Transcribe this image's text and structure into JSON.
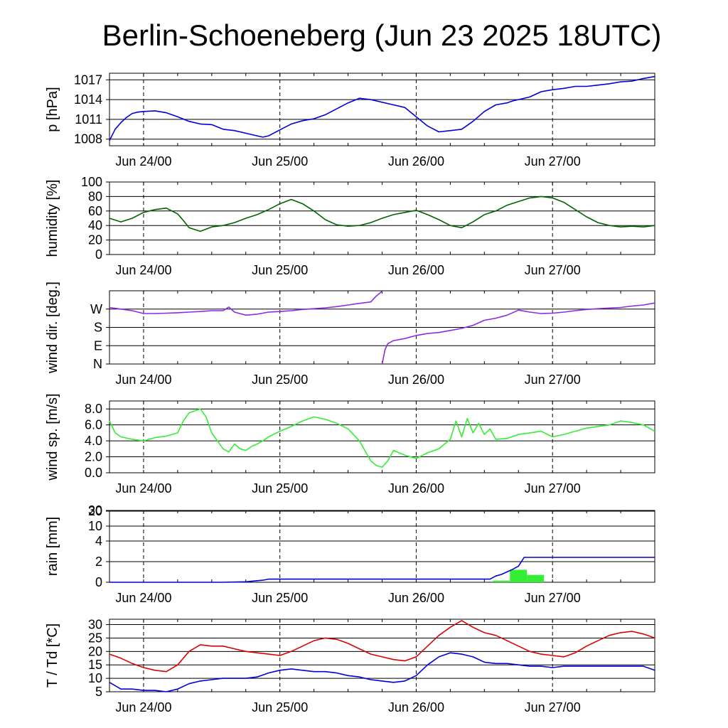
{
  "title": "Berlin-Schoeneberg (Jun 23 2025 18UTC)",
  "x_tick_labels": [
    "Jun 24/00",
    "Jun 25/00",
    "Jun 26/00",
    "Jun 27/00"
  ],
  "chart_data": [
    {
      "id": "pressure",
      "type": "line",
      "ylabel": "p [hPa]",
      "ylim": [
        1007,
        1018
      ],
      "yticks": [
        1008,
        1011,
        1014,
        1017
      ],
      "yticklabels": [
        "1008",
        "1011",
        "1014",
        "1017"
      ],
      "x_unit": "hours since Jun 23 18UTC",
      "xlim": [
        0,
        96
      ],
      "series": [
        {
          "color": "#0000dd",
          "x": [
            0,
            1,
            2,
            3,
            4,
            5,
            6,
            8,
            10,
            12,
            14,
            16,
            18,
            20,
            22,
            24,
            26,
            27,
            28,
            30,
            32,
            34,
            36,
            38,
            40,
            42,
            44,
            46,
            48,
            50,
            52,
            54,
            56,
            58,
            60,
            62,
            64,
            66,
            68,
            70,
            71,
            72,
            74,
            76,
            78,
            80,
            82,
            84,
            86,
            88,
            90,
            92,
            94,
            96
          ],
          "y": [
            1007.8,
            1009.5,
            1010.5,
            1011.3,
            1011.9,
            1012.1,
            1012.2,
            1012.3,
            1012.0,
            1011.4,
            1010.7,
            1010.3,
            1010.2,
            1009.5,
            1009.3,
            1008.9,
            1008.5,
            1008.3,
            1008.5,
            1009.4,
            1010.3,
            1010.8,
            1011.1,
            1011.7,
            1012.6,
            1013.5,
            1014.2,
            1014.0,
            1013.6,
            1013.2,
            1012.8,
            1011.4,
            1010.0,
            1009.1,
            1009.3,
            1009.5,
            1010.7,
            1012.2,
            1013.2,
            1013.5,
            1013.8,
            1014.0,
            1014.4,
            1015.2,
            1015.5,
            1015.7,
            1016.0,
            1016.0,
            1016.2,
            1016.4,
            1016.7,
            1016.8,
            1017.2,
            1017.5
          ]
        }
      ]
    },
    {
      "id": "humidity",
      "type": "line",
      "ylabel": "humidity [%]",
      "ylim": [
        0,
        100
      ],
      "yticks": [
        0,
        20,
        40,
        60,
        80,
        100
      ],
      "yticklabels": [
        "0",
        "20",
        "40",
        "60",
        "80",
        "100"
      ],
      "xlim": [
        0,
        96
      ],
      "series": [
        {
          "color": "#006400",
          "x": [
            0,
            2,
            4,
            6,
            8,
            10,
            12,
            13,
            14,
            16,
            18,
            20,
            22,
            24,
            26,
            28,
            30,
            32,
            34,
            36,
            38,
            40,
            42,
            44,
            46,
            48,
            50,
            52,
            54,
            56,
            58,
            60,
            62,
            64,
            66,
            68,
            70,
            72,
            74,
            76,
            78,
            80,
            82,
            84,
            86,
            88,
            90,
            92,
            94,
            96
          ],
          "y": [
            50,
            45,
            50,
            58,
            62,
            64,
            56,
            47,
            37,
            32,
            38,
            40,
            44,
            50,
            55,
            62,
            70,
            76,
            70,
            60,
            48,
            41,
            39,
            40,
            44,
            50,
            55,
            58,
            61,
            55,
            48,
            40,
            37,
            45,
            55,
            60,
            68,
            73,
            78,
            80,
            78,
            72,
            62,
            52,
            44,
            40,
            38,
            39,
            38,
            40
          ]
        }
      ]
    },
    {
      "id": "wind-direction",
      "type": "line",
      "ylabel": "wind dir. [deg.]",
      "ylim": [
        0,
        360
      ],
      "yticks": [
        0,
        90,
        180,
        270
      ],
      "yticklabels": [
        "N",
        "E",
        "S",
        "W"
      ],
      "xlim": [
        0,
        96
      ],
      "series": [
        {
          "color": "#8a2be2",
          "segments": [
            {
              "x": [
                0,
                2,
                4,
                6,
                8,
                10,
                12,
                14,
                16,
                18,
                20,
                21,
                22,
                24,
                26,
                28,
                30,
                32,
                34,
                36,
                38,
                40,
                42,
                44,
                46,
                47,
                48
              ],
              "y": [
                278,
                270,
                262,
                248,
                248,
                250,
                252,
                255,
                258,
                262,
                262,
                280,
                255,
                240,
                245,
                255,
                258,
                262,
                268,
                272,
                276,
                282,
                290,
                298,
                305,
                335,
                358
              ]
            },
            {
              "x": [
                48,
                48.5,
                49,
                50,
                52,
                54,
                56,
                58,
                60,
                62,
                64,
                66,
                68,
                70,
                72,
                74,
                76,
                78,
                80,
                82,
                84,
                86,
                88,
                90,
                92,
                94,
                96
              ],
              "y": [
                0,
                70,
                100,
                115,
                125,
                140,
                150,
                155,
                165,
                175,
                190,
                215,
                225,
                240,
                265,
                255,
                248,
                250,
                255,
                262,
                268,
                272,
                275,
                278,
                285,
                290,
                300
              ]
            }
          ]
        }
      ]
    },
    {
      "id": "wind-speed",
      "type": "line",
      "ylabel": "wind sp. [m/s]",
      "ylim": [
        0,
        9
      ],
      "yticks": [
        0,
        2,
        4,
        6,
        8
      ],
      "yticklabels": [
        "0.0",
        "2.0",
        "4.0",
        "6.0",
        "8.0"
      ],
      "xlim": [
        0,
        96
      ],
      "series": [
        {
          "color": "#33ee33",
          "x": [
            0,
            1,
            2,
            4,
            6,
            8,
            10,
            12,
            13,
            14,
            16,
            17,
            18,
            19,
            20,
            21,
            22,
            23,
            24,
            25,
            26,
            27,
            28,
            30,
            32,
            34,
            36,
            38,
            40,
            42,
            44,
            46,
            47,
            48,
            49,
            50,
            52,
            54,
            56,
            58,
            60,
            61,
            62,
            63,
            64,
            65,
            66,
            67,
            68,
            70,
            72,
            74,
            76,
            78,
            80,
            82,
            84,
            86,
            88,
            90,
            92,
            94,
            96
          ],
          "y": [
            6.5,
            5.0,
            4.5,
            4.2,
            4.0,
            4.4,
            4.6,
            5.0,
            6.5,
            7.5,
            8.0,
            7.0,
            5.0,
            4.0,
            3.0,
            2.6,
            3.6,
            3.0,
            2.8,
            3.3,
            3.6,
            4.0,
            4.5,
            5.2,
            5.8,
            6.5,
            7.0,
            6.7,
            6.2,
            5.5,
            4.0,
            1.5,
            0.9,
            0.7,
            1.5,
            2.8,
            2.2,
            1.8,
            2.5,
            3.0,
            4.2,
            6.5,
            4.5,
            6.8,
            5.0,
            6.2,
            4.8,
            5.5,
            4.2,
            4.3,
            4.8,
            5.0,
            5.2,
            4.5,
            4.8,
            5.2,
            5.6,
            5.8,
            6.0,
            6.5,
            6.3,
            6.0,
            5.2
          ]
        }
      ]
    },
    {
      "id": "rain",
      "type": "bar",
      "ylabel": "rain [mm]",
      "scale": "piecewise",
      "ylim": [
        0,
        30
      ],
      "yticks": [
        0,
        2,
        4,
        10,
        20,
        30
      ],
      "yticklabels": [
        "0",
        "2",
        "4",
        "10",
        "20",
        "30"
      ],
      "xlim": [
        0,
        96
      ],
      "bars": [
        {
          "x0": 67.5,
          "x1": 70.5,
          "value": 0.15
        },
        {
          "x0": 70.5,
          "x1": 73.5,
          "value": 1.2
        },
        {
          "x0": 73.5,
          "x1": 76.5,
          "value": 0.7
        }
      ],
      "bar_color": "#33ee33",
      "cumulative": {
        "color": "#0000dd",
        "x": [
          0,
          20,
          24,
          27,
          28,
          48,
          67,
          68,
          69,
          70,
          71,
          72,
          73,
          96
        ],
        "y": [
          0,
          0,
          0.05,
          0.2,
          0.3,
          0.3,
          0.3,
          0.6,
          0.75,
          1.0,
          1.25,
          1.55,
          2.4,
          2.4
        ]
      }
    },
    {
      "id": "temperature",
      "type": "line",
      "ylabel": "T / Td [*C]",
      "ylim": [
        5,
        32
      ],
      "yticks": [
        5,
        10,
        15,
        20,
        25,
        30
      ],
      "yticklabels": [
        "5",
        "10",
        "15",
        "20",
        "25",
        "30"
      ],
      "xlim": [
        0,
        96
      ],
      "series": [
        {
          "name": "T",
          "color": "#dd0000",
          "x": [
            0,
            2,
            4,
            6,
            8,
            10,
            12,
            14,
            16,
            18,
            20,
            22,
            24,
            26,
            28,
            30,
            32,
            34,
            36,
            38,
            40,
            42,
            44,
            46,
            48,
            50,
            52,
            54,
            56,
            58,
            60,
            62,
            64,
            66,
            68,
            70,
            72,
            74,
            76,
            78,
            80,
            82,
            84,
            86,
            88,
            90,
            92,
            94,
            96
          ],
          "y": [
            19,
            17.5,
            15.5,
            14,
            13,
            12.5,
            15,
            20,
            22.5,
            22,
            22,
            21,
            20,
            19.5,
            19,
            18.5,
            20,
            22,
            24,
            25,
            24.5,
            23,
            21,
            19,
            18,
            17,
            16.5,
            18,
            22,
            26,
            29,
            31.5,
            29,
            27,
            26,
            24,
            22,
            20,
            19,
            18.5,
            18,
            19.5,
            22,
            24,
            26,
            27,
            27.5,
            26.5,
            25
          ]
        },
        {
          "name": "Td",
          "color": "#0000dd",
          "x": [
            0,
            2,
            4,
            6,
            8,
            10,
            12,
            14,
            16,
            18,
            20,
            22,
            24,
            26,
            28,
            30,
            32,
            34,
            36,
            38,
            40,
            42,
            44,
            46,
            48,
            50,
            52,
            54,
            56,
            58,
            60,
            62,
            64,
            66,
            68,
            70,
            72,
            74,
            76,
            78,
            80,
            82,
            84,
            86,
            88,
            90,
            92,
            94,
            96
          ],
          "y": [
            8.5,
            6,
            6,
            5.5,
            5.5,
            5,
            6,
            8,
            9,
            9.5,
            10,
            10,
            10,
            10.5,
            12,
            13,
            13.5,
            13,
            12.5,
            12.5,
            12,
            11,
            10.5,
            9.5,
            9,
            8.5,
            9,
            11,
            15,
            18,
            19.5,
            19,
            18,
            16,
            15.5,
            15.5,
            15,
            14.5,
            14.5,
            14,
            14.5,
            14.5,
            14.5,
            14.5,
            14.5,
            14.5,
            14.5,
            14.5,
            13
          ]
        }
      ]
    }
  ]
}
